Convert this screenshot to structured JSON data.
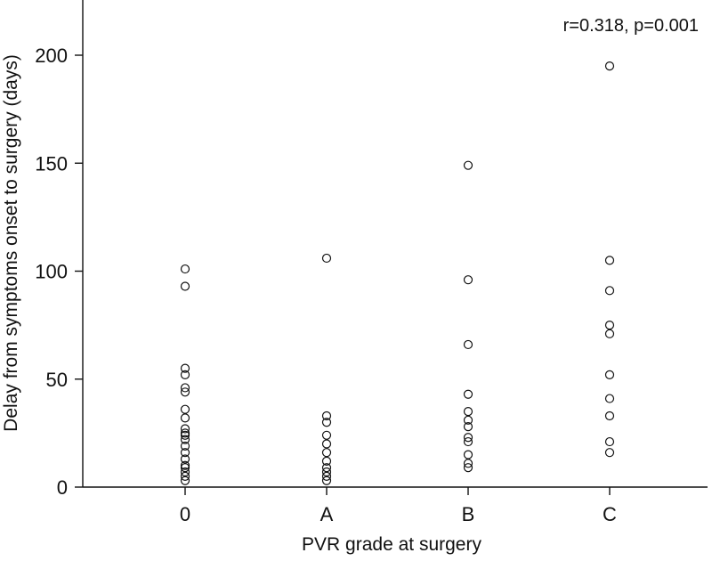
{
  "chart_data": {
    "type": "scatter",
    "title": "",
    "xlabel": "PVR grade at surgery",
    "ylabel": "Delay from symptoms onset to surgery (days)",
    "annotation": "r=0.318, p=0.001",
    "categories": [
      "0",
      "A",
      "B",
      "C"
    ],
    "yticks": [
      0,
      50,
      100,
      150,
      200
    ],
    "ylim": [
      0,
      225
    ],
    "grid": false,
    "legend": "none",
    "points": [
      {
        "x": "0",
        "y": 101
      },
      {
        "x": "0",
        "y": 93
      },
      {
        "x": "0",
        "y": 55
      },
      {
        "x": "0",
        "y": 52
      },
      {
        "x": "0",
        "y": 46
      },
      {
        "x": "0",
        "y": 44
      },
      {
        "x": "0",
        "y": 36
      },
      {
        "x": "0",
        "y": 32
      },
      {
        "x": "0",
        "y": 27
      },
      {
        "x": "0",
        "y": 25
      },
      {
        "x": "0",
        "y": 24
      },
      {
        "x": "0",
        "y": 22
      },
      {
        "x": "0",
        "y": 19
      },
      {
        "x": "0",
        "y": 16
      },
      {
        "x": "0",
        "y": 13
      },
      {
        "x": "0",
        "y": 10
      },
      {
        "x": "0",
        "y": 9
      },
      {
        "x": "0",
        "y": 7
      },
      {
        "x": "0",
        "y": 5
      },
      {
        "x": "0",
        "y": 3
      },
      {
        "x": "A",
        "y": 106
      },
      {
        "x": "A",
        "y": 33
      },
      {
        "x": "A",
        "y": 30
      },
      {
        "x": "A",
        "y": 24
      },
      {
        "x": "A",
        "y": 20
      },
      {
        "x": "A",
        "y": 16
      },
      {
        "x": "A",
        "y": 12
      },
      {
        "x": "A",
        "y": 9
      },
      {
        "x": "A",
        "y": 7
      },
      {
        "x": "A",
        "y": 5
      },
      {
        "x": "A",
        "y": 3
      },
      {
        "x": "B",
        "y": 149
      },
      {
        "x": "B",
        "y": 96
      },
      {
        "x": "B",
        "y": 66
      },
      {
        "x": "B",
        "y": 43
      },
      {
        "x": "B",
        "y": 35
      },
      {
        "x": "B",
        "y": 31
      },
      {
        "x": "B",
        "y": 28
      },
      {
        "x": "B",
        "y": 23
      },
      {
        "x": "B",
        "y": 21
      },
      {
        "x": "B",
        "y": 15
      },
      {
        "x": "B",
        "y": 11
      },
      {
        "x": "B",
        "y": 9
      },
      {
        "x": "C",
        "y": 195
      },
      {
        "x": "C",
        "y": 105
      },
      {
        "x": "C",
        "y": 91
      },
      {
        "x": "C",
        "y": 75
      },
      {
        "x": "C",
        "y": 71
      },
      {
        "x": "C",
        "y": 52
      },
      {
        "x": "C",
        "y": 41
      },
      {
        "x": "C",
        "y": 33
      },
      {
        "x": "C",
        "y": 21
      },
      {
        "x": "C",
        "y": 16
      }
    ]
  }
}
